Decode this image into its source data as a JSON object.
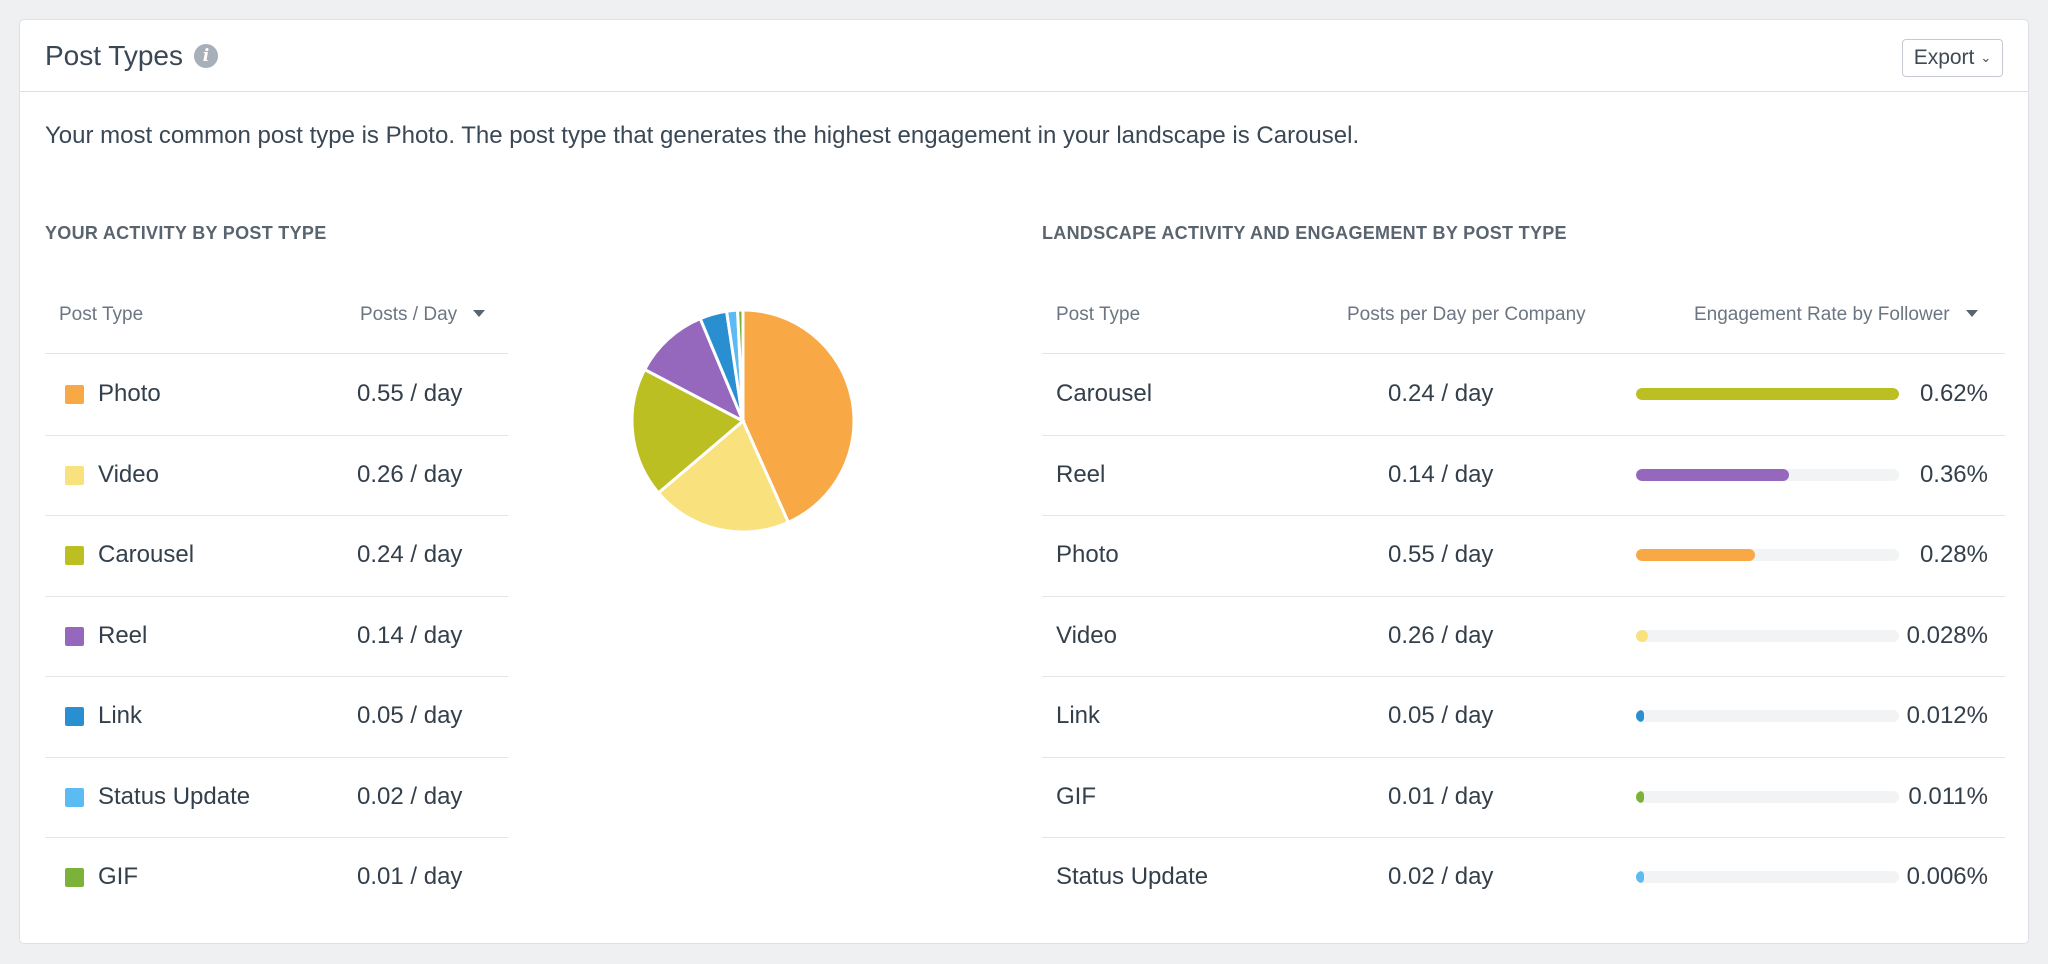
{
  "header": {
    "title": "Post Types",
    "export_label": "Export"
  },
  "summary": "Your most common post type is Photo. The post type that generates the highest engagement in your landscape is Carousel.",
  "your_activity": {
    "title": "YOUR ACTIVITY BY POST TYPE",
    "columns": {
      "post_type": "Post Type",
      "posts_per_day": "Posts / Day"
    },
    "rows": [
      {
        "label": "Photo",
        "value": "0.55 / day",
        "posts": 0.55,
        "color": "#f8a845"
      },
      {
        "label": "Video",
        "value": "0.26 / day",
        "posts": 0.26,
        "color": "#f9e17d"
      },
      {
        "label": "Carousel",
        "value": "0.24 / day",
        "posts": 0.24,
        "color": "#bcbf21"
      },
      {
        "label": "Reel",
        "value": "0.14 / day",
        "posts": 0.14,
        "color": "#9568be"
      },
      {
        "label": "Link",
        "value": "0.05 / day",
        "posts": 0.05,
        "color": "#2a8fd0"
      },
      {
        "label": "Status Update",
        "value": "0.02 / day",
        "posts": 0.02,
        "color": "#5cbbf3"
      },
      {
        "label": "GIF",
        "value": "0.01 / day",
        "posts": 0.01,
        "color": "#7cb23a"
      }
    ]
  },
  "chart_data": {
    "type": "pie",
    "categories": [
      "Photo",
      "Video",
      "Carousel",
      "Reel",
      "Link",
      "Status Update",
      "GIF"
    ],
    "values": [
      0.55,
      0.26,
      0.24,
      0.14,
      0.05,
      0.02,
      0.01
    ],
    "colors": [
      "#f8a845",
      "#f9e17d",
      "#bcbf21",
      "#9568be",
      "#2a8fd0",
      "#5cbbf3",
      "#7cb23a"
    ]
  },
  "landscape": {
    "title": "LANDSCAPE ACTIVITY AND ENGAGEMENT BY POST TYPE",
    "columns": {
      "post_type": "Post Type",
      "posts_per_day": "Posts per Day per Company",
      "engagement": "Engagement Rate by Follower"
    },
    "rows": [
      {
        "label": "Carousel",
        "posts": "0.24 / day",
        "engagement": "0.62%",
        "rate": 0.62,
        "color": "#bcbf21"
      },
      {
        "label": "Reel",
        "posts": "0.14 / day",
        "engagement": "0.36%",
        "rate": 0.36,
        "color": "#9568be"
      },
      {
        "label": "Photo",
        "posts": "0.55 / day",
        "engagement": "0.28%",
        "rate": 0.28,
        "color": "#f8a845"
      },
      {
        "label": "Video",
        "posts": "0.26 / day",
        "engagement": "0.028%",
        "rate": 0.028,
        "color": "#f9e17d"
      },
      {
        "label": "Link",
        "posts": "0.05 / day",
        "engagement": "0.012%",
        "rate": 0.012,
        "color": "#2a8fd0"
      },
      {
        "label": "GIF",
        "posts": "0.01 / day",
        "engagement": "0.011%",
        "rate": 0.011,
        "color": "#7cb23a"
      },
      {
        "label": "Status Update",
        "posts": "0.02 / day",
        "engagement": "0.006%",
        "rate": 0.006,
        "color": "#5cbbf3"
      }
    ]
  }
}
